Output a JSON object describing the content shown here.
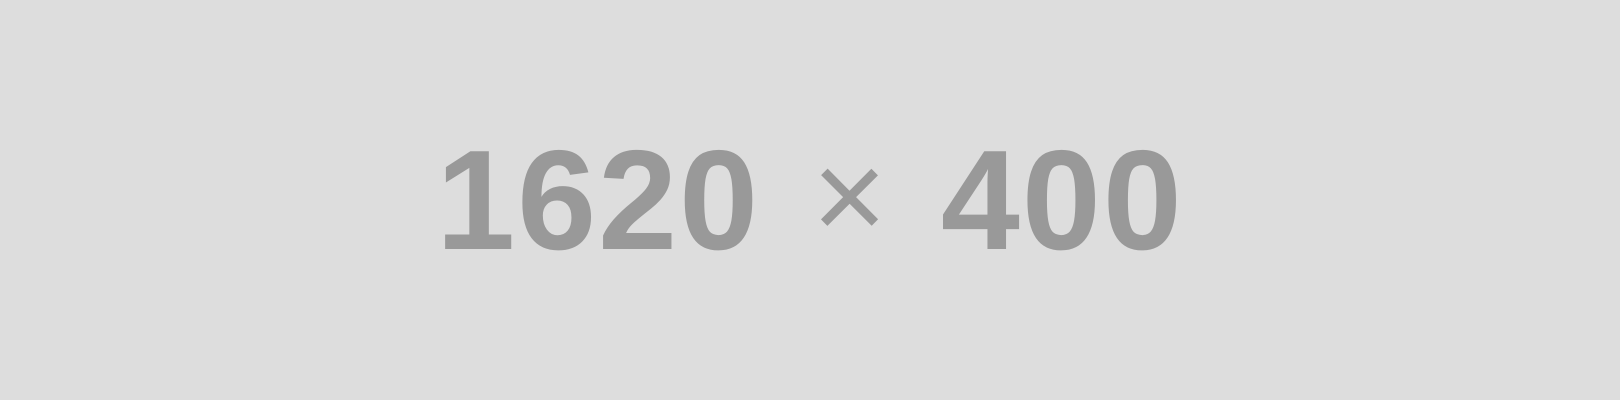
{
  "placeholder": {
    "width_text": "1620",
    "times_symbol": "×",
    "height_text": "400",
    "background_color": "#dddddd",
    "text_color": "#999999"
  }
}
